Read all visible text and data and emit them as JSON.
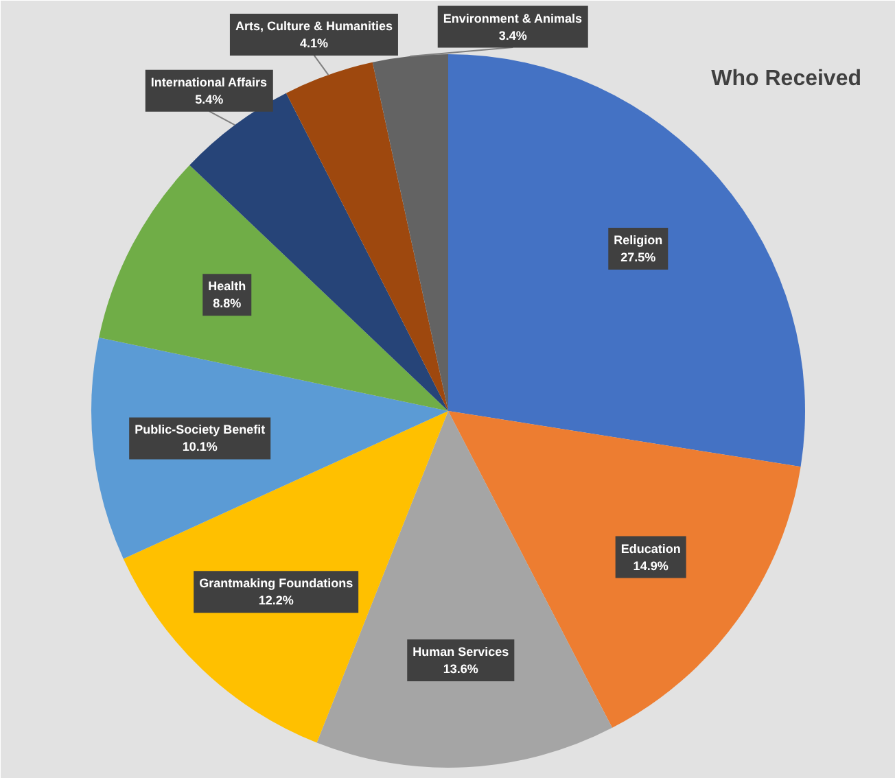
{
  "chart_data": {
    "type": "pie",
    "title": "Who Received",
    "categories": [
      "Religion",
      "Education",
      "Human Services",
      "Grantmaking Foundations",
      "Public-Society Benefit",
      "Health",
      "International Affairs",
      "Arts, Culture & Humanities",
      "Environment & Animals"
    ],
    "values": [
      27.5,
      14.9,
      13.6,
      12.2,
      10.1,
      8.8,
      5.4,
      4.1,
      3.4
    ],
    "colors": [
      "#4472c4",
      "#ed7d31",
      "#a5a5a5",
      "#ffc000",
      "#5b9bd5",
      "#70ad47",
      "#264478",
      "#9e480e",
      "#636363"
    ],
    "value_labels": [
      "27.5%",
      "14.9%",
      "13.6%",
      "12.2%",
      "10.1%",
      "8.8%",
      "5.4%",
      "4.1%",
      "3.4%"
    ]
  }
}
